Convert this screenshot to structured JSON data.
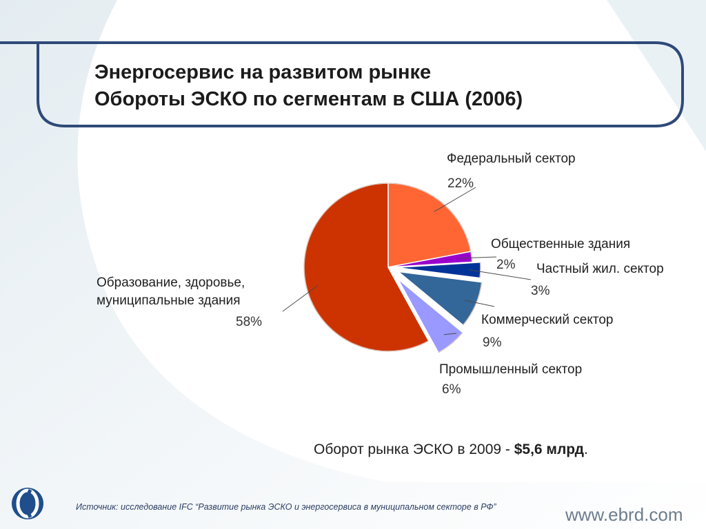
{
  "slide": {
    "title_line1": "Энергосервис на развитом рынке",
    "title_line2": "Обороты ЭСКО по сегментам в США (2006)",
    "turnover_prefix": "Оборот рынка ЭСКО в 2009 - ",
    "turnover_value": "$5,6 млрд",
    "turnover_suffix": ".",
    "source": "Источник: исследование IFC “Развитие рынка ЭСКО и энергосервиса в муниципальном секторе в РФ”",
    "url": "www.ebrd.com",
    "logo_icon": "ebrd-logo-icon"
  },
  "colors": {
    "frame": "#2e4a78",
    "background_wash": "#e6eef3"
  },
  "chart_data": {
    "type": "pie",
    "title": "Обороты ЭСКО по сегментам в США (2006)",
    "unit": "%",
    "slices": [
      {
        "name": "Федеральный сектор",
        "value": 22,
        "label": "22%",
        "color": "#ff6633"
      },
      {
        "name": "Общественные здания",
        "value": 2,
        "label": "2%",
        "color": "#9900cc"
      },
      {
        "name": "Частный жил. сектор",
        "value": 3,
        "label": "3%",
        "color": "#003399"
      },
      {
        "name": "Коммерческий сектор",
        "value": 9,
        "label": "9%",
        "color": "#336699"
      },
      {
        "name": "Промышленный сектор",
        "value": 6,
        "label": "6%",
        "color": "#9999ff"
      },
      {
        "name": "Образование, здоровье, муниципальные здания",
        "value": 58,
        "label": "58%",
        "color": "#cc3300"
      }
    ],
    "exploded_slices": [
      "Частный жил. сектор",
      "Коммерческий сектор",
      "Промышленный сектор"
    ],
    "legend": "none"
  }
}
